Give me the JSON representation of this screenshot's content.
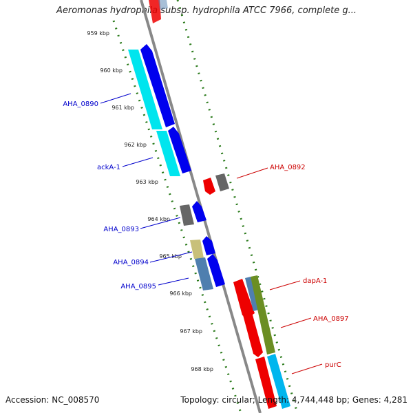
{
  "title": "Aeromonas hydrophila subsp. hydrophila ATCC 7966, complete g...",
  "footer": {
    "accession": "Accession: NC_008570",
    "summary": "Topology: circular; Length: 4,744,448 bp; Genes: 4,281"
  },
  "ticks": [
    "959 kbp",
    "960 kbp",
    "961 kbp",
    "962 kbp",
    "963 kbp",
    "964 kbp",
    "965 kbp",
    "966 kbp",
    "967 kbp",
    "968 kbp"
  ],
  "left_labels": [
    "AHA_0890",
    "ackA-1",
    "AHA_0893",
    "AHA_0894",
    "AHA_0895"
  ],
  "right_labels": [
    "AHA_0892",
    "dapA-1",
    "AHA_0897",
    "purC"
  ],
  "colors": {
    "left_label": "#0000cc",
    "right_label": "#cc0000",
    "backbone": "#888888",
    "dots": "#2a7a1a",
    "blue": "#0000ee",
    "cyan": "#00e5ee",
    "red": "#ee0000",
    "gray": "#666666",
    "steel": "#4f7faf",
    "khaki": "#c8c07a",
    "olive": "#6b8e23",
    "skyblue": "#00b6ee"
  }
}
